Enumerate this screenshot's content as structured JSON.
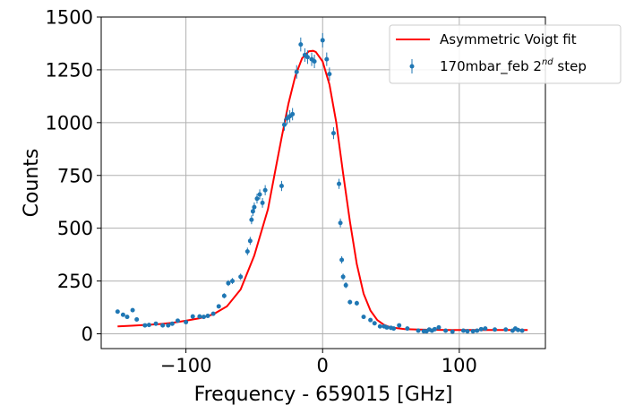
{
  "chart_data": {
    "type": "scatter",
    "xlabel": "Frequency - 659015 [GHz]",
    "ylabel": "Counts",
    "xlim": [
      -162,
      163
    ],
    "ylim": [
      -70,
      1500
    ],
    "xticks": [
      -100,
      0,
      100
    ],
    "xtick_labels": [
      "−100",
      "0",
      "100"
    ],
    "yticks": [
      0,
      250,
      500,
      750,
      1000,
      1250,
      1500
    ],
    "ytick_labels": [
      "0",
      "250",
      "500",
      "750",
      "1000",
      "1250",
      "1500"
    ],
    "grid": true,
    "legend_position": "top-right",
    "colors": {
      "fit": "#ff0000",
      "data": "#1f77b4",
      "grid": "#b0b0b0"
    },
    "series": [
      {
        "name": "Asymmetric Voigt fit",
        "kind": "line",
        "x": [
          -150,
          -140,
          -130,
          -120,
          -110,
          -100,
          -90,
          -80,
          -70,
          -60,
          -50,
          -40,
          -35,
          -30,
          -25,
          -20,
          -15,
          -10,
          -7,
          -5,
          0,
          5,
          10,
          15,
          20,
          25,
          30,
          35,
          40,
          45,
          50,
          60,
          70,
          80,
          90,
          100,
          110,
          120,
          130,
          140,
          150
        ],
        "y": [
          35,
          38,
          42,
          46,
          52,
          62,
          74,
          92,
          130,
          210,
          370,
          590,
          760,
          930,
          1090,
          1220,
          1305,
          1338,
          1340,
          1335,
          1290,
          1180,
          1000,
          760,
          530,
          330,
          190,
          110,
          65,
          42,
          30,
          22,
          20,
          19,
          18,
          18,
          18,
          18,
          18,
          18,
          18
        ]
      },
      {
        "name": "170mbar_feb 2nd step",
        "label_main": "170mbar_feb 2",
        "label_sup": "nd",
        "label_tail": " step",
        "kind": "errorbar",
        "x": [
          -150,
          -146,
          -143,
          -139,
          -136,
          -130,
          -127,
          -122,
          -117,
          -113,
          -110,
          -106,
          -100,
          -95,
          -90,
          -87,
          -84,
          -80,
          -76,
          -72,
          -69,
          -66,
          -60,
          -55,
          -53,
          -52,
          -51,
          -50,
          -48,
          -46,
          -44,
          -42,
          -30,
          -28,
          -26,
          -24,
          -22,
          -19,
          -16,
          -13,
          -11,
          -8,
          -6,
          0,
          3,
          5,
          8,
          12,
          13,
          14,
          15,
          17,
          20,
          25,
          30,
          35,
          38,
          42,
          45,
          47,
          50,
          52,
          56,
          62,
          70,
          74,
          76,
          78,
          80,
          82,
          85,
          90,
          95,
          103,
          106,
          110,
          113,
          116,
          119,
          126,
          134,
          139,
          141,
          143,
          146
        ],
        "y": [
          105,
          90,
          80,
          112,
          68,
          40,
          42,
          48,
          40,
          40,
          48,
          62,
          55,
          82,
          82,
          80,
          85,
          95,
          130,
          180,
          240,
          250,
          270,
          390,
          440,
          540,
          580,
          600,
          640,
          660,
          620,
          680,
          700,
          990,
          1020,
          1030,
          1040,
          1240,
          1370,
          1320,
          1310,
          1300,
          1290,
          1390,
          1300,
          1230,
          950,
          710,
          525,
          350,
          270,
          230,
          150,
          145,
          80,
          65,
          50,
          35,
          35,
          30,
          28,
          25,
          40,
          25,
          15,
          12,
          12,
          20,
          15,
          22,
          30,
          15,
          10,
          15,
          12,
          12,
          15,
          22,
          25,
          20,
          20,
          15,
          25,
          18,
          15
        ],
        "yerr": [
          8,
          8,
          8,
          8,
          8,
          6,
          6,
          6,
          6,
          6,
          6,
          7,
          7,
          8,
          8,
          8,
          8,
          9,
          10,
          12,
          14,
          14,
          15,
          18,
          19,
          21,
          22,
          22,
          23,
          24,
          23,
          24,
          24,
          28,
          29,
          29,
          29,
          32,
          33,
          32,
          32,
          32,
          32,
          34,
          32,
          31,
          28,
          24,
          21,
          17,
          15,
          14,
          11,
          11,
          8,
          7,
          6,
          5,
          5,
          5,
          5,
          5,
          6,
          5,
          4,
          4,
          4,
          4,
          4,
          4,
          5,
          4,
          3,
          4,
          3,
          3,
          4,
          4,
          5,
          4,
          4,
          4,
          5,
          4,
          4
        ]
      }
    ]
  }
}
